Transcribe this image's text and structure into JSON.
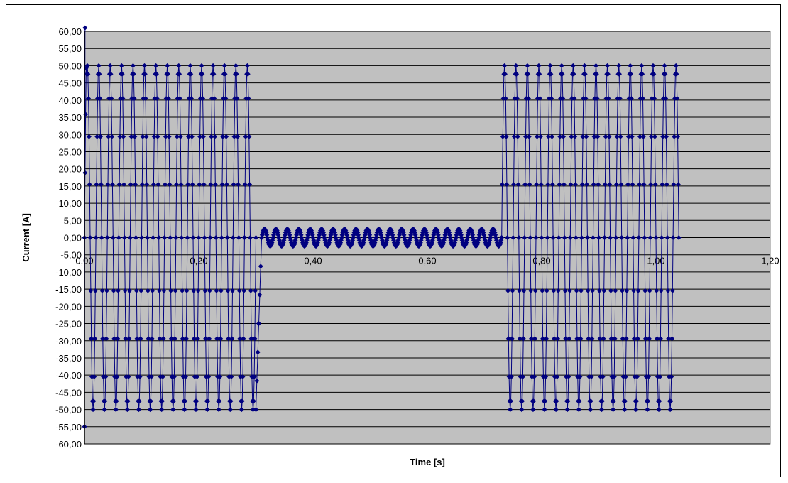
{
  "chart_data": {
    "type": "scatter",
    "title": "",
    "xlabel": "Time [s]",
    "ylabel": "Current [A]",
    "xlim": [
      0,
      1.2
    ],
    "ylim": [
      -60,
      60
    ],
    "x_ticks": [
      0.0,
      0.2,
      0.4,
      0.6,
      0.8,
      1.0,
      1.2
    ],
    "x_tick_labels": [
      "0,00",
      "0,20",
      "0,40",
      "0,60",
      "0,80",
      "1,00",
      "1,20"
    ],
    "y_ticks": [
      60,
      55,
      50,
      45,
      40,
      35,
      30,
      25,
      20,
      15,
      10,
      5,
      0,
      -5,
      -10,
      -15,
      -20,
      -25,
      -30,
      -35,
      -40,
      -45,
      -50,
      -55,
      -60
    ],
    "y_tick_labels": [
      "60,00",
      "55,00",
      "50,00",
      "45,00",
      "40,00",
      "35,00",
      "30,00",
      "25,00",
      "20,00",
      "15,00",
      "10,00",
      "5,00",
      "0,00",
      "-5,00",
      "-10,00",
      "-15,00",
      "-20,00",
      "-25,00",
      "-30,00",
      "-35,00",
      "-40,00",
      "-45,00",
      "-50,00",
      "-55,00",
      "-60,00"
    ],
    "grid": true,
    "legend": "none",
    "series": [
      {
        "marker": "diamond",
        "color": "#000080",
        "segments": [
          {
            "t_start": 0.0,
            "t_end": 0.3,
            "amplitude": 50,
            "frequency_hz": 50,
            "samples_per_period": 20,
            "startup_peak": 61
          },
          {
            "t_start": 0.3,
            "t_end": 0.31,
            "decay_from": -50,
            "decay_to": 0
          },
          {
            "t_start": 0.31,
            "t_end": 0.73,
            "amplitude": 2.5,
            "frequency_hz": 50,
            "samples_per_period": 20
          },
          {
            "t_start": 0.73,
            "t_end": 1.04,
            "amplitude": 50,
            "frequency_hz": 50,
            "samples_per_period": 20
          }
        ]
      }
    ]
  },
  "colors": {
    "plot_background": "#c0c0c0",
    "gridline": "#000000",
    "series": "#000080"
  }
}
